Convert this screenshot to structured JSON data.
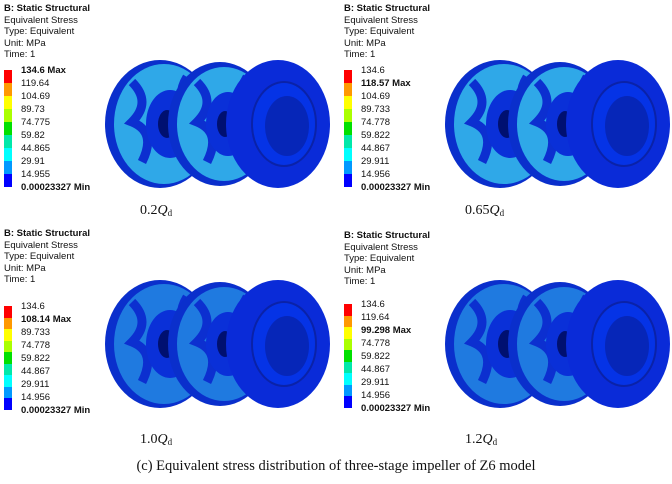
{
  "colorbar": [
    "#ff0000",
    "#ff9900",
    "#ffff00",
    "#aaff00",
    "#00e000",
    "#00e8aa",
    "#00ffff",
    "#0099ff",
    "#0000ff"
  ],
  "panels": [
    {
      "header": [
        "B: Static Structural",
        "Equivalent Stress",
        "Type: Equivalent",
        "Unit: MPa",
        "Time: 1"
      ],
      "labels": [
        {
          "text": "134.6 Max",
          "bold": true
        },
        {
          "text": "119.64"
        },
        {
          "text": "104.69"
        },
        {
          "text": "89.73"
        },
        {
          "text": "74.775"
        },
        {
          "text": "59.82"
        },
        {
          "text": "44.865"
        },
        {
          "text": "29.91"
        },
        {
          "text": "14.955"
        },
        {
          "text": "0.00023327 Min",
          "bold": true
        }
      ],
      "caption_num": "0.2",
      "caption_q": "Q",
      "caption_sub": "d"
    },
    {
      "header": [
        "B: Static Structural",
        "Equivalent Stress",
        "Type: Equivalent",
        "Unit: MPa",
        "Time: 1"
      ],
      "labels": [
        {
          "text": "134.6"
        },
        {
          "text": "118.57 Max",
          "bold": true
        },
        {
          "text": "104.69"
        },
        {
          "text": "89.733"
        },
        {
          "text": "74.778"
        },
        {
          "text": "59.822"
        },
        {
          "text": "44.867"
        },
        {
          "text": "29.911"
        },
        {
          "text": "14.956"
        },
        {
          "text": "0.00023327 Min",
          "bold": true
        }
      ],
      "caption_num": "0.65",
      "caption_q": "Q",
      "caption_sub": "d"
    },
    {
      "header": [
        "B: Static Structural",
        "Equivalent Stress",
        "Type: Equivalent",
        "Unit: MPa",
        "Time: 1"
      ],
      "labels": [
        {
          "text": "134.6"
        },
        {
          "text": "108.14 Max",
          "bold": true
        },
        {
          "text": "89.733"
        },
        {
          "text": "74.778"
        },
        {
          "text": "59.822"
        },
        {
          "text": "44.867"
        },
        {
          "text": "29.911"
        },
        {
          "text": "14.956"
        },
        {
          "text": "0.00023327 Min",
          "bold": true
        }
      ],
      "caption_num": "1.0",
      "caption_q": "Q",
      "caption_sub": "d"
    },
    {
      "header": [
        "B: Static Structural",
        "Equivalent Stress",
        "Type: Equivalent",
        "Unit: MPa",
        "Time: 1"
      ],
      "labels": [
        {
          "text": "134.6"
        },
        {
          "text": "119.64"
        },
        {
          "text": "99.298 Max",
          "bold": true
        },
        {
          "text": "74.778"
        },
        {
          "text": "59.822"
        },
        {
          "text": "44.867"
        },
        {
          "text": "29.911"
        },
        {
          "text": "14.956"
        },
        {
          "text": "0.00023327 Min",
          "bold": true
        }
      ],
      "caption_num": "1.2",
      "caption_q": "Q",
      "caption_sub": "d"
    }
  ],
  "figure_caption": "(c) Equivalent stress distribution of three-stage impeller of Z6 model"
}
